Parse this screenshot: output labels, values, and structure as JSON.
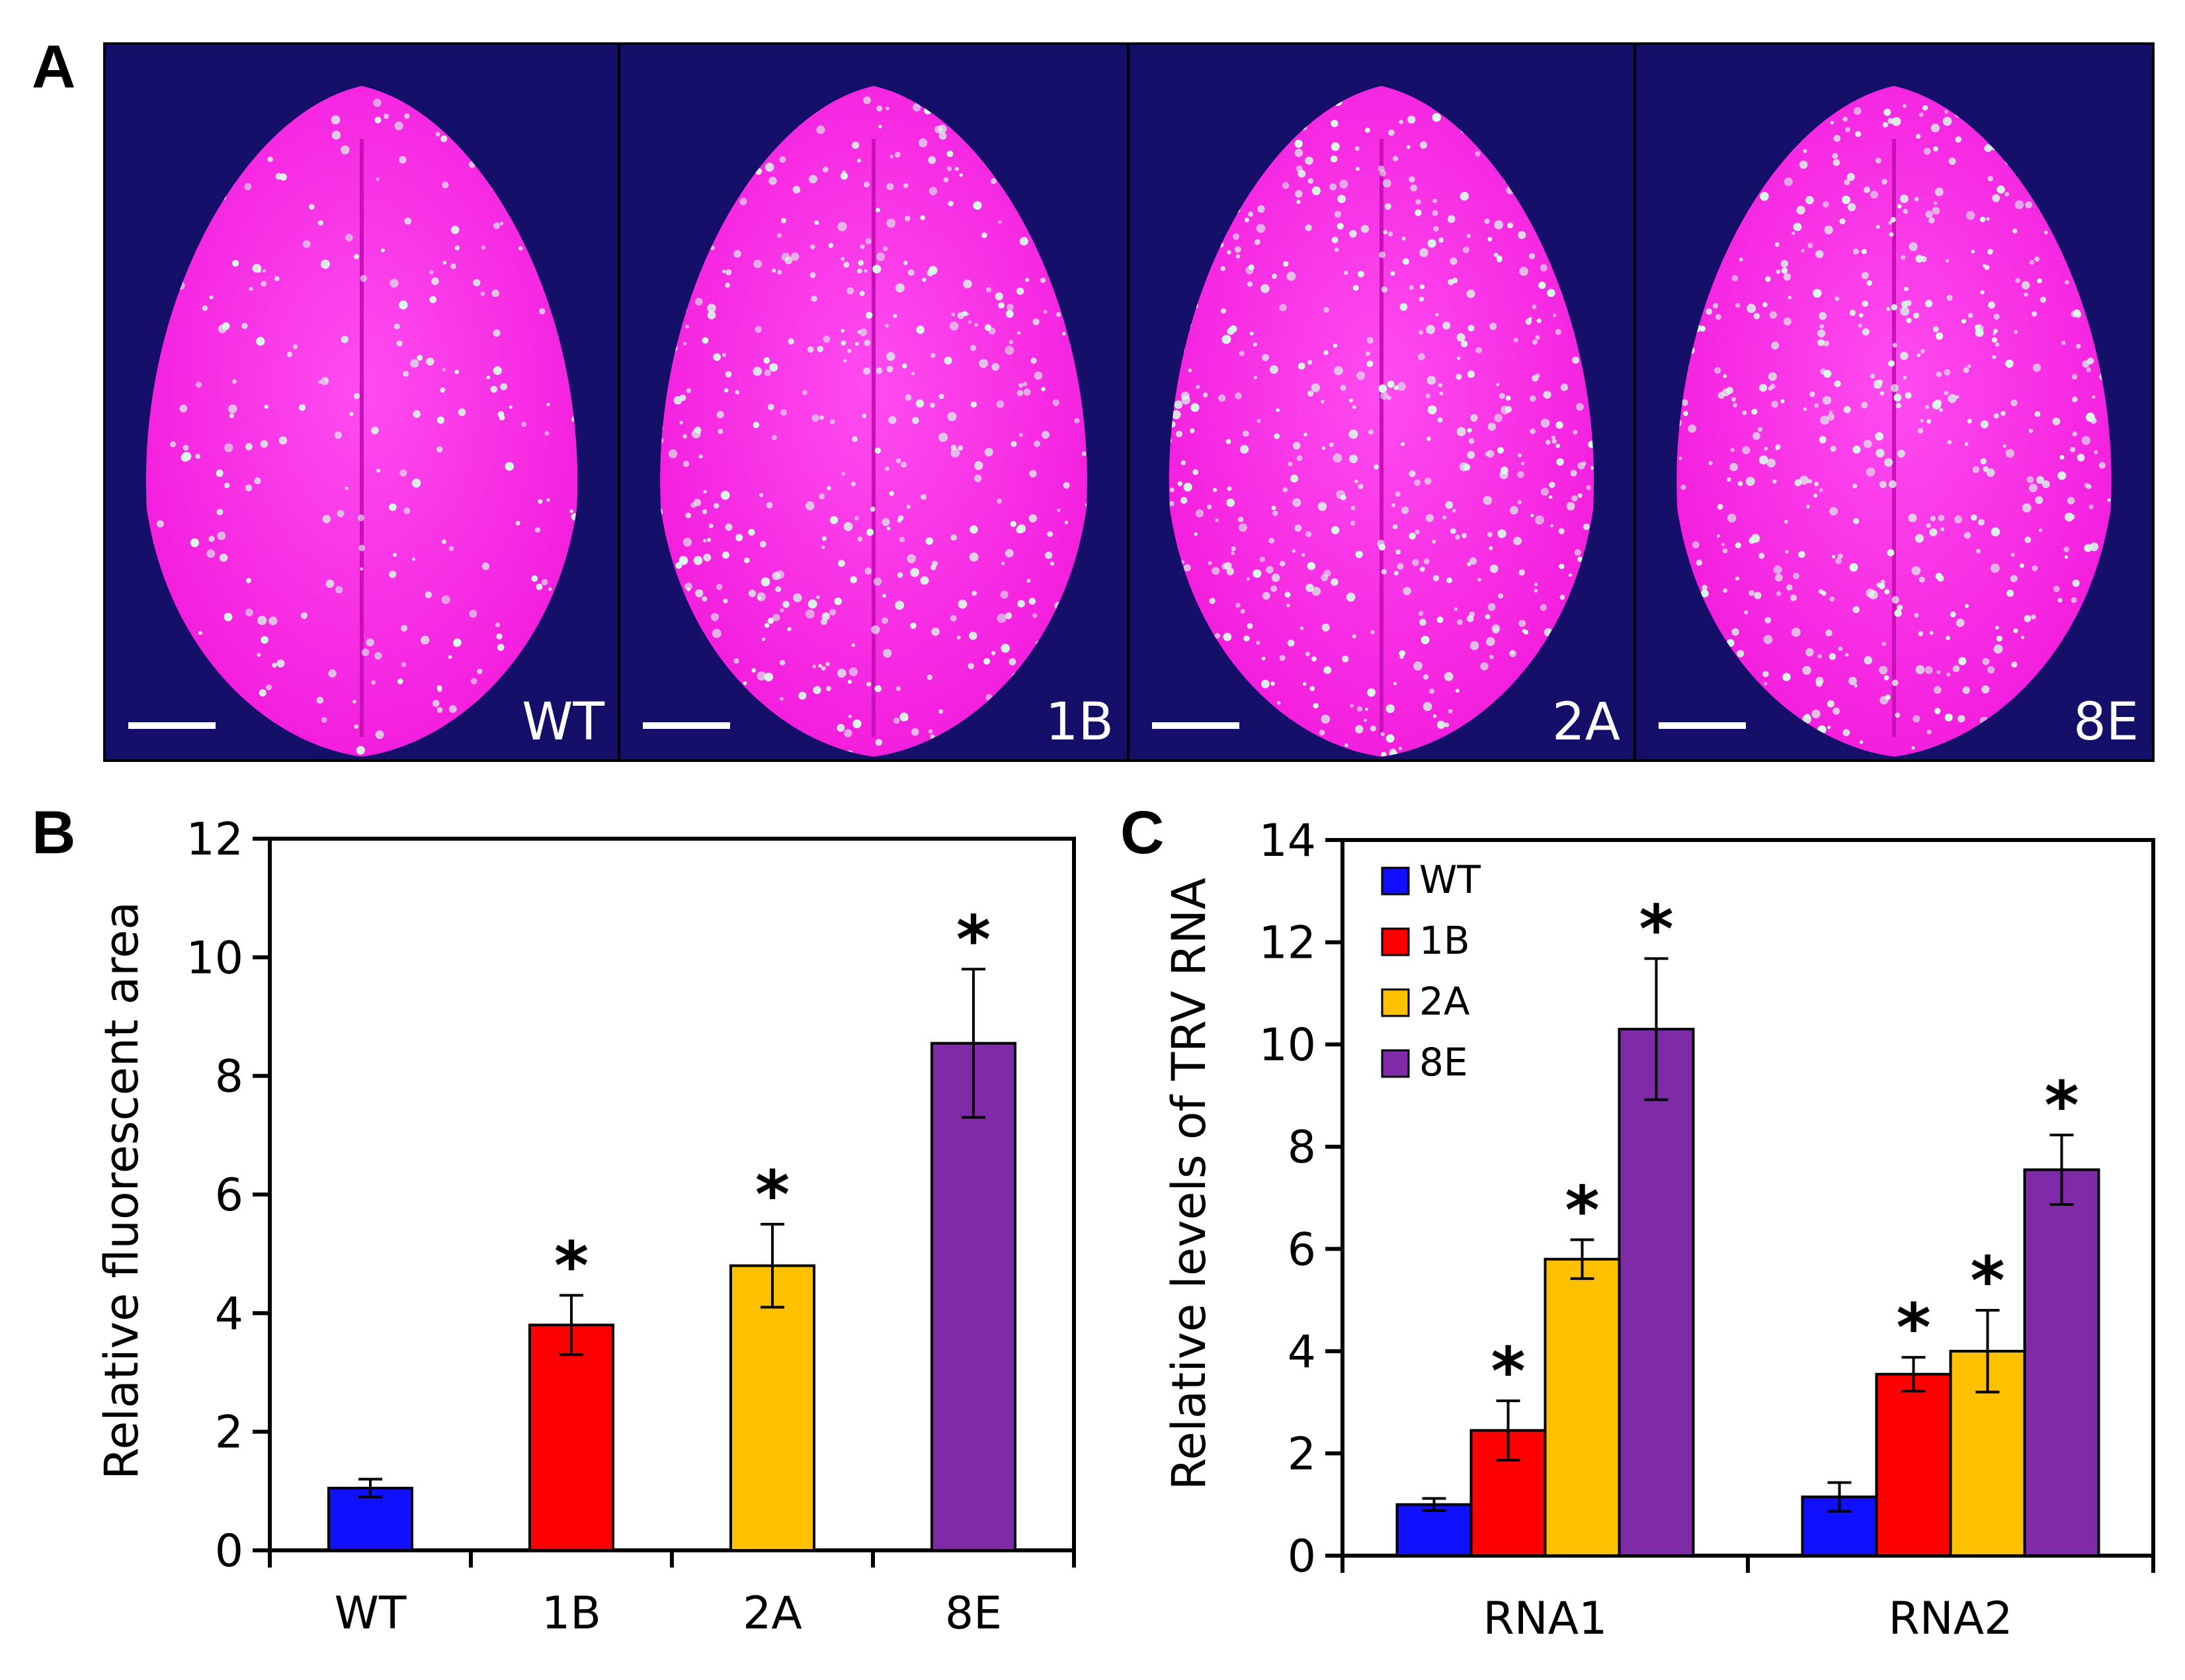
{
  "panel_letters": [
    "A",
    "B",
    "C"
  ],
  "photo_panel": {
    "labels": [
      "WT",
      "1B",
      "2A",
      "8E"
    ],
    "colors": {
      "background": "#14106a",
      "leaf": "#f21adc",
      "speck": "#d8ffe8",
      "scale_bar": "#ffffff"
    }
  },
  "chart_data": [
    {
      "type": "bar",
      "panel": "B",
      "categories": [
        "WT",
        "1B",
        "2A",
        "8E"
      ],
      "values": [
        1.05,
        3.8,
        4.8,
        8.55
      ],
      "errors": [
        0.15,
        0.5,
        0.7,
        1.25
      ],
      "significant": [
        false,
        true,
        true,
        true
      ],
      "colors": [
        "#1010ff",
        "#ff0000",
        "#ffc000",
        "#7f2aa6"
      ],
      "ylabel": "Relative fluorescent area",
      "xlabel": "",
      "ylim": [
        0,
        12
      ],
      "yticks": [
        0,
        2,
        4,
        6,
        8,
        10,
        12
      ],
      "star_symbol": "*"
    },
    {
      "type": "bar",
      "panel": "C",
      "categories": [
        "RNA1",
        "RNA2"
      ],
      "series": [
        {
          "name": "WT",
          "color": "#1010ff",
          "values": [
            1.0,
            1.15
          ],
          "errors": [
            0.12,
            0.28
          ],
          "significant": [
            false,
            false
          ]
        },
        {
          "name": "1B",
          "color": "#ff0000",
          "values": [
            2.45,
            3.55
          ],
          "errors": [
            0.58,
            0.33
          ],
          "significant": [
            true,
            true
          ]
        },
        {
          "name": "2A",
          "color": "#ffc000",
          "values": [
            5.8,
            4.0
          ],
          "errors": [
            0.38,
            0.8
          ],
          "significant": [
            true,
            true
          ]
        },
        {
          "name": "8E",
          "color": "#7f2aa6",
          "values": [
            10.3,
            7.55
          ],
          "errors": [
            1.38,
            0.68
          ],
          "significant": [
            true,
            true
          ]
        }
      ],
      "ylabel": "Relative levels of TRV RNA",
      "xlabel": "",
      "ylim": [
        0,
        14
      ],
      "yticks": [
        0,
        2,
        4,
        6,
        8,
        10,
        12,
        14
      ],
      "legend_position": "top-left",
      "star_symbol": "*"
    }
  ]
}
